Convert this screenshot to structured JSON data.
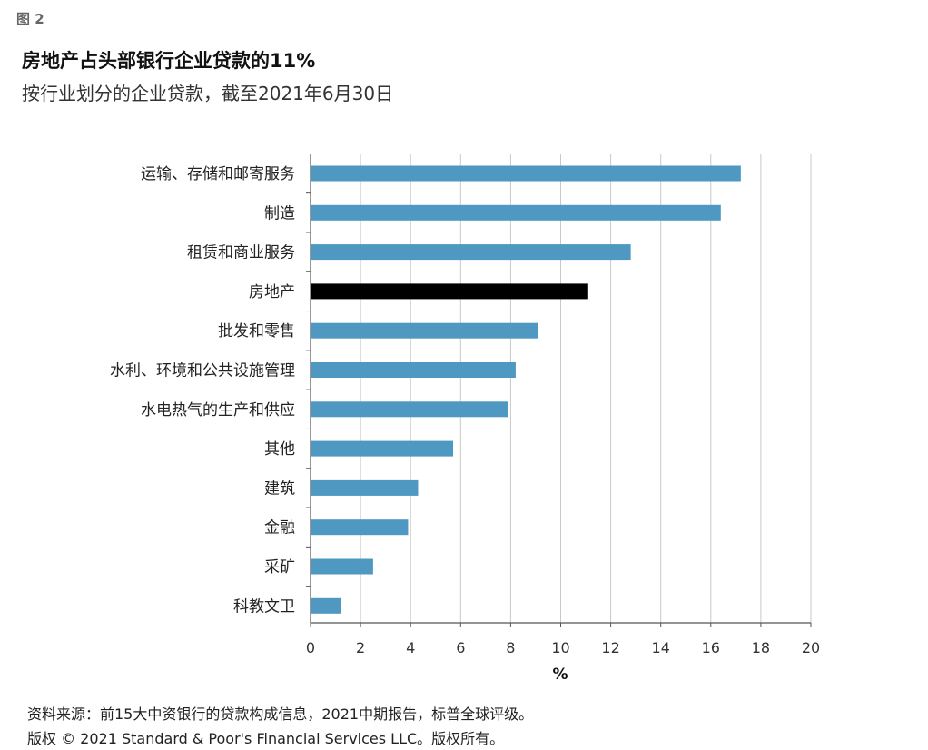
{
  "figure_label": "图 2",
  "chart_data": {
    "type": "bar",
    "orientation": "horizontal",
    "title": "房地产占头部银行企业贷款的11%",
    "subtitle": "按行业划分的企业贷款，截至2021年6月30日",
    "categories": [
      "运输、存储和邮寄服务",
      "制造",
      "租赁和商业服务",
      "房地产",
      "批发和零售",
      "水利、环境和公共设施管理",
      "水电热气的生产和供应",
      "其他",
      "建筑",
      "金融",
      "采矿",
      "科教文卫"
    ],
    "values": [
      17.2,
      16.4,
      12.8,
      11.1,
      9.1,
      8.2,
      7.9,
      5.7,
      4.3,
      3.9,
      2.5,
      1.2
    ],
    "highlight_category": "房地产",
    "colors": {
      "default": "#4e98c2",
      "highlight": "#000000",
      "grid": "#c8c8c8"
    },
    "xlabel": "%",
    "xlim": [
      0,
      20
    ],
    "xticks": [
      0,
      2,
      4,
      6,
      8,
      10,
      12,
      14,
      16,
      18,
      20
    ],
    "grid": true
  },
  "footer": {
    "source": "资料来源：前15大中资银行的贷款构成信息，2021中期报告，标普全球评级。",
    "copyright": "版权 © 2021 Standard & Poor's Financial Services LLC。版权所有。"
  }
}
